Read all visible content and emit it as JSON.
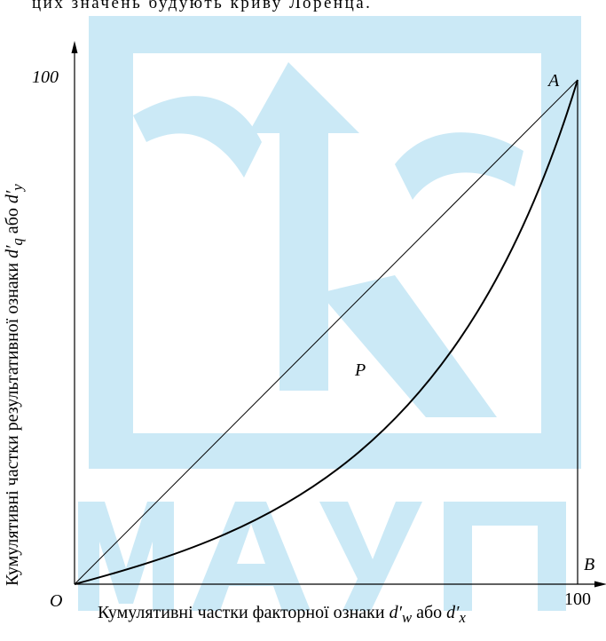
{
  "caption_fragment": "цих значень будують криву Лоренца.",
  "watermark": {
    "text": "МАУП",
    "color": "#cbe9f6"
  },
  "diagram": {
    "origin_label": "O",
    "point_a_label": "A",
    "point_b_label": "B",
    "point_p_label": "P",
    "y_tick": "100",
    "x_tick": "100",
    "y_axis_label": {
      "prefix": "Кумулятивні частки результативної ознаки ",
      "sym1": "d′",
      "sub1": "q",
      "middle": " або ",
      "sym2": "d′",
      "sub2": "y"
    },
    "x_axis_label": {
      "prefix": "Кумулятивні частки факторної ознаки ",
      "sym1": "d′",
      "sub1": "w",
      "middle": " або ",
      "sym2": "d′",
      "sub2": "x"
    }
  }
}
